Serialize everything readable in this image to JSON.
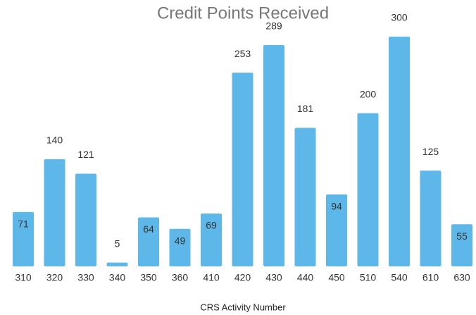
{
  "chart_data": {
    "type": "bar",
    "title": "Credit Points Received",
    "x_label": "CRS Activity Number",
    "categories": [
      "310",
      "320",
      "330",
      "340",
      "350",
      "360",
      "410",
      "420",
      "430",
      "440",
      "450",
      "510",
      "540",
      "610",
      "630"
    ],
    "values": [
      71,
      140,
      121,
      5,
      64,
      49,
      69,
      253,
      289,
      181,
      94,
      200,
      300,
      125,
      55
    ],
    "color": "#5db7e8"
  }
}
